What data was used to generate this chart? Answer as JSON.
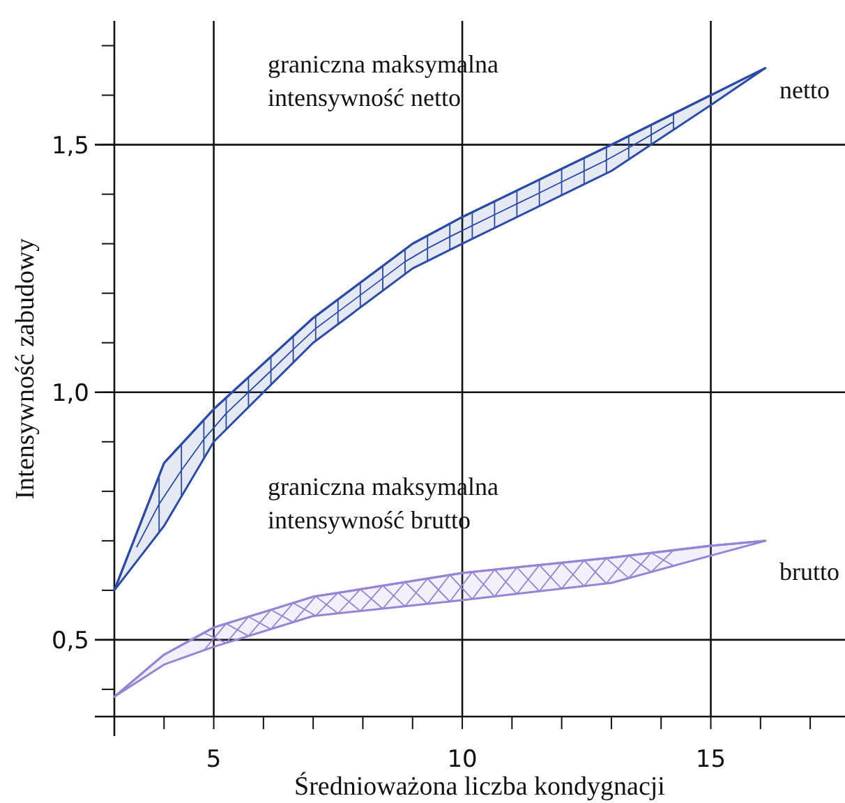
{
  "chart_data": {
    "type": "line",
    "xlabel": "Średnioważona liczba kondygnacji",
    "ylabel": "Intensywność zabudowy",
    "xlim": [
      3,
      17.7
    ],
    "ylim": [
      0.345,
      1.75
    ],
    "xticks": [
      {
        "value": 3,
        "label": null
      },
      {
        "value": 4,
        "label": null
      },
      {
        "value": 5,
        "label": "5"
      },
      {
        "value": 6,
        "label": null
      },
      {
        "value": 7,
        "label": null
      },
      {
        "value": 8,
        "label": null
      },
      {
        "value": 9,
        "label": null
      },
      {
        "value": 10,
        "label": "10"
      },
      {
        "value": 11,
        "label": null
      },
      {
        "value": 12,
        "label": null
      },
      {
        "value": 13,
        "label": null
      },
      {
        "value": 14,
        "label": null
      },
      {
        "value": 15,
        "label": "15"
      },
      {
        "value": 16,
        "label": null
      },
      {
        "value": 17,
        "label": null
      }
    ],
    "yticks": [
      {
        "value": 0.4,
        "label": null
      },
      {
        "value": 0.5,
        "label": "0,5"
      },
      {
        "value": 0.6,
        "label": null
      },
      {
        "value": 0.7,
        "label": null
      },
      {
        "value": 0.8,
        "label": null
      },
      {
        "value": 0.9,
        "label": null
      },
      {
        "value": 1.0,
        "label": "1,0"
      },
      {
        "value": 1.1,
        "label": null
      },
      {
        "value": 1.2,
        "label": null
      },
      {
        "value": 1.3,
        "label": null
      },
      {
        "value": 1.4,
        "label": null
      },
      {
        "value": 1.5,
        "label": "1,5"
      },
      {
        "value": 1.6,
        "label": null
      },
      {
        "value": 1.7,
        "label": null
      }
    ],
    "grid": true,
    "series": [
      {
        "name": "netto",
        "color": "#2b4ba8",
        "x": [
          3,
          4,
          5,
          7,
          9,
          10,
          13,
          15,
          16.1
        ],
        "values": [
          0.6,
          0.857,
          0.966,
          1.15,
          1.3,
          1.354,
          1.5,
          1.6,
          1.655
        ],
        "upper": [
          0.6,
          0.857,
          0.966,
          1.15,
          1.3,
          1.354,
          1.5,
          1.6,
          1.655
        ],
        "lower": [
          0.6,
          0.73,
          0.9,
          1.1,
          1.25,
          1.3,
          1.447,
          1.58,
          1.655
        ]
      },
      {
        "name": "brutto",
        "color": "#9684d4",
        "x": [
          3,
          4,
          5,
          7,
          10,
          13,
          15,
          16.1
        ],
        "values": [
          0.385,
          0.47,
          0.525,
          0.587,
          0.635,
          0.666,
          0.69,
          0.7
        ],
        "upper": [
          0.385,
          0.47,
          0.525,
          0.587,
          0.635,
          0.666,
          0.69,
          0.7
        ],
        "lower": [
          0.385,
          0.45,
          0.486,
          0.548,
          0.58,
          0.615,
          0.67,
          0.7
        ]
      }
    ],
    "annotations": [
      "graniczna maksymalna\nintensywność netto",
      "graniczna maksymalna\nintensywność brutto"
    ]
  }
}
